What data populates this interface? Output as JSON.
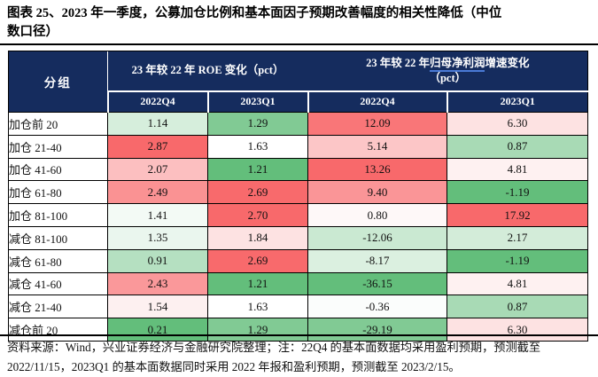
{
  "figure": {
    "title_line1": "图表 25、2023 年一季度，公募加仓比例和基本面因子预期改善幅度的相关性降低（中位",
    "title_line2": "数口径）",
    "footnote_line1": "资料来源：Wind，兴业证券经济与金融研究院整理；注：22Q4 的基本面数据均采用盈利预期，预测截至",
    "footnote_line2": "2022/11/15，2023Q1 的基本面数据同时采用 2022 年报和盈利预期，预测截至 2023/2/15。"
  },
  "colors": {
    "header_bg": "#152C5E",
    "header_text": "#FFFFFF",
    "link_underline": "#4A7AD6",
    "scale_high_red": "#F8696B",
    "scale_mid_white": "#FFFFFF",
    "scale_low_green": "#63BE7B"
  },
  "chart_data": {
    "type": "table",
    "title": "图表 25、2023 年一季度，公募加仓比例和基本面因子预期改善幅度的相关性降低（中位数口径）",
    "group_header": "分组",
    "col_group_1": "23 年较 22 年 ROE 变化（pct）",
    "col_group_2_prefix": "23 年较 22 年",
    "col_group_2_underlined": "归母净利润",
    "col_group_2_suffix": "增速变化",
    "col_group_2_line2": "（pct）",
    "sub_headers": [
      "2022Q4",
      "2023Q1",
      "2022Q4",
      "2023Q1"
    ],
    "rows": [
      {
        "label": "加仓前 20",
        "values": [
          1.14,
          1.29,
          12.09,
          6.3
        ],
        "bg": [
          "#D6EEDC",
          "#81CA94",
          "#F97678",
          "#FDE2E2"
        ]
      },
      {
        "label": "加仓 21-40",
        "values": [
          2.87,
          1.63,
          5.14,
          0.87
        ],
        "bg": [
          "#F8696B",
          "#FFFFFF",
          "#FCC6C7",
          "#A8DAB5"
        ]
      },
      {
        "label": "加仓 41-60",
        "values": [
          2.07,
          1.21,
          13.26,
          4.81
        ],
        "bg": [
          "#FCBFC0",
          "#63BE7B",
          "#F8696B",
          "#FEF1F1"
        ]
      },
      {
        "label": "加仓 61-80",
        "values": [
          2.49,
          2.69,
          9.4,
          -1.19
        ],
        "bg": [
          "#FA9293",
          "#F86A6C",
          "#FA9597",
          "#63BE7B"
        ]
      },
      {
        "label": "加仓 81-100",
        "values": [
          1.41,
          2.7,
          0.8,
          17.92
        ],
        "bg": [
          "#F3FAF5",
          "#F8696B",
          "#FEF8F8",
          "#F8696B"
        ]
      },
      {
        "label": "减仓 81-100",
        "values": [
          1.35,
          1.84,
          -12.06,
          2.17
        ],
        "bg": [
          "#EAF6EE",
          "#FDE2E2",
          "#CAE9D2",
          "#D3ECD9"
        ]
      },
      {
        "label": "减仓 61-80",
        "values": [
          0.91,
          2.69,
          -8.17,
          -1.19
        ],
        "bg": [
          "#B5E0C1",
          "#F86A6C",
          "#DBF0E0",
          "#63BE7B"
        ]
      },
      {
        "label": "减仓 41-60",
        "values": [
          2.43,
          1.21,
          -36.15,
          4.81
        ],
        "bg": [
          "#FA989A",
          "#63BE7B",
          "#63BE7B",
          "#FEF1F1"
        ]
      },
      {
        "label": "减仓 21-40",
        "values": [
          1.54,
          1.63,
          -0.36,
          0.87
        ],
        "bg": [
          "#FDF0F0",
          "#FFFFFF",
          "#FBFDFC",
          "#A8DAB5"
        ]
      },
      {
        "label": "减仓前 20",
        "values": [
          0.21,
          1.29,
          -29.19,
          6.3
        ],
        "bg": [
          "#63BE7B",
          "#81CA94",
          "#81CA94",
          "#FDE2E2"
        ]
      }
    ]
  }
}
